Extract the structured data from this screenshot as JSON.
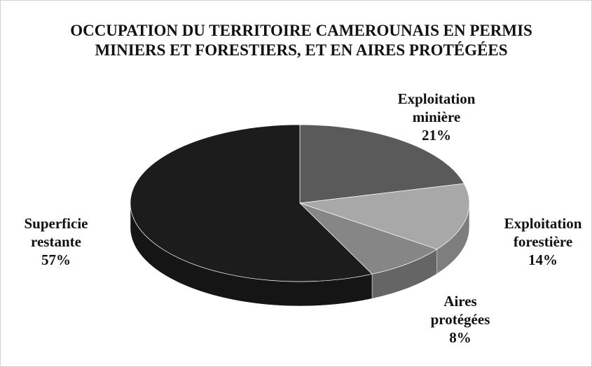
{
  "chart_data": {
    "type": "pie",
    "title": "OCCUPATION DU TERRITOIRE CAMEROUNAIS EN PERMIS MINIERS ET FORESTIERS, ET EN AIRES PROTÉGÉES",
    "categories": [
      "Exploitation minière",
      "Exploitation forestière",
      "Aires protégées",
      "Superficie restante"
    ],
    "values": [
      21,
      14,
      8,
      57
    ],
    "value_labels": [
      "21%",
      "14%",
      "8%",
      "57%"
    ],
    "colors": [
      "#5a5a5a",
      "#a8a8a8",
      "#868686",
      "#1c1c1c"
    ]
  }
}
